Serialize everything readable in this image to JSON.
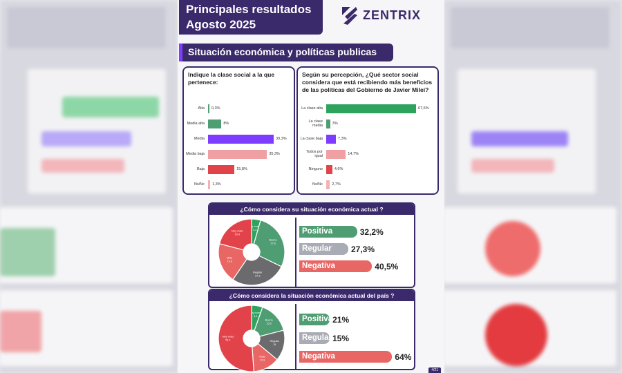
{
  "header": {
    "title_line1": "Principales resultados",
    "title_line2": "Agosto 2025"
  },
  "brand": {
    "name": "ZENTRIX"
  },
  "section": {
    "title": "Situación económica y políticas publicas"
  },
  "colors": {
    "primary": "#3b2a6b",
    "accent": "#7d3cff",
    "green": "#4f9e73",
    "dark_green": "#2ea35e",
    "purple": "#7d3cff",
    "pink": "#f0a0a3",
    "red": "#e2434b",
    "light_pink": "#f3b1b6",
    "grey": "#a9acb4",
    "dark_grey": "#6b6b6e",
    "red_bar": "#e86663"
  },
  "chart_data": [
    {
      "type": "bar",
      "title": "Indique la clase social a la que pertenece:",
      "categories": [
        "Alta",
        "Media alta",
        "Media",
        "Media baja",
        "Baja",
        "Ns/Nc"
      ],
      "values": [
        0.3,
        8,
        39.3,
        35.3,
        15.8,
        1.3
      ],
      "labels": [
        "0,3%",
        "8%",
        "39,3%",
        "35,3%",
        "15,8%",
        "1,3%"
      ]
    },
    {
      "type": "bar",
      "title": "Según su percepción, ¿Qué sector social considera que está recibiendo más beneficios de las políticas del Gobierno de Javier Milei?",
      "categories": [
        "La clase alta",
        "La clase media",
        "La clase baja",
        "Todos por igual",
        "Ninguno",
        "Ns/Nc"
      ],
      "values": [
        67.6,
        3,
        7.3,
        14.7,
        4.6,
        2.7
      ],
      "labels": [
        "67,6%",
        "3%",
        "7,3%",
        "14,7%",
        "4,6%",
        "2,7%"
      ]
    },
    {
      "type": "pie",
      "title": "¿Cómo considera su situación económica actual ?",
      "slices": [
        {
          "name": "Muy buena",
          "value": 4.4
        },
        {
          "name": "Buena",
          "value": 27.8
        },
        {
          "name": "Regular",
          "value": 27.3
        },
        {
          "name": "Mala",
          "value": 19.6
        },
        {
          "name": "Muy mala",
          "value": 20.9
        }
      ],
      "slice_labels": [
        "Muy buena\n4,4",
        "Buena\n27,8",
        "Regular\n27,3",
        "Mala\n19,6",
        "Muy mala\n20,9"
      ],
      "summary": [
        {
          "label": "Positiva",
          "value": 32.2,
          "text": "32,2%"
        },
        {
          "label": "Regular",
          "value": 27.3,
          "text": "27,3%"
        },
        {
          "label": "Negativa",
          "value": 40.5,
          "text": "40,5%"
        }
      ]
    },
    {
      "type": "pie",
      "title": "¿Cómo considera la situación económica actual del país ?",
      "slices": [
        {
          "name": "Muy buena",
          "value": 5.4
        },
        {
          "name": "Buena",
          "value": 15.6
        },
        {
          "name": "Regular",
          "value": 15
        },
        {
          "name": "Mala",
          "value": 12.9
        },
        {
          "name": "Muy mala",
          "value": 51.1
        }
      ],
      "slice_labels": [
        "Muy buena\n5,4",
        "Buena\n15,6",
        "Regular\n15",
        "Mala\n12,9",
        "Muy mala\n51,1"
      ],
      "summary": [
        {
          "label": "Positiva",
          "value": 21,
          "text": "21%"
        },
        {
          "label": "Regular",
          "value": 15,
          "text": "15%"
        },
        {
          "label": "Negativa",
          "value": 64,
          "text": "64%"
        }
      ]
    }
  ],
  "page_number": "4/21"
}
